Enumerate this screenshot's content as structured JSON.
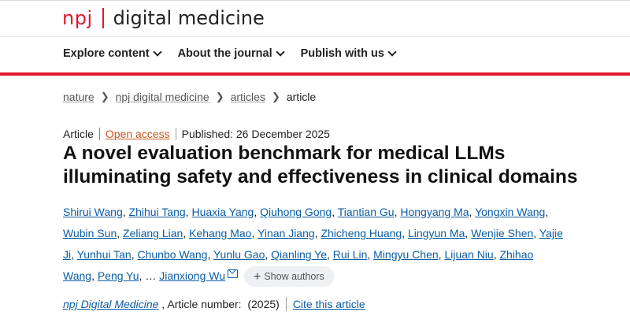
{
  "header": {
    "logo_npj": "npj",
    "logo_title": "digital medicine",
    "brand_color": "#e0182d"
  },
  "nav": [
    {
      "label": "Explore content"
    },
    {
      "label": "About the journal"
    },
    {
      "label": "Publish with us"
    }
  ],
  "breadcrumb": [
    {
      "label": "nature"
    },
    {
      "label": "npj digital medicine"
    },
    {
      "label": "articles"
    },
    {
      "label": "article"
    }
  ],
  "meta": {
    "type": "Article",
    "access": "Open access",
    "published": "Published: 26 December 2025"
  },
  "title": "A novel evaluation benchmark for medical LLMs illuminating safety and effectiveness in clinical domains",
  "authors": [
    "Shirui Wang",
    "Zhihui Tang",
    "Huaxia Yang",
    "Qiuhong Gong",
    "Tiantian Gu",
    "Hongyang Ma",
    "Yongxin Wang",
    "Wubin Sun",
    "Zeliang Lian",
    "Kehang Mao",
    "Yinan Jiang",
    "Zhicheng Huang",
    "Lingyun Ma",
    "Wenjie Shen",
    "Yajie Ji",
    "Yunhui Tan",
    "Chunbo Wang",
    "Yunlu Gao",
    "Qianling Ye",
    "Rui Lin",
    "Mingyu Chen",
    "Lijuan Niu",
    "Zhihao Wang",
    "Peng Yu"
  ],
  "authors_ellipsis": "…",
  "last_author": "Jianxiong Wu",
  "show_authors_label": "Show authors",
  "journal": {
    "name": "npj Digital Medicine",
    "article_number": ", Article number:  (2025)",
    "cite_label": "Cite this article"
  }
}
